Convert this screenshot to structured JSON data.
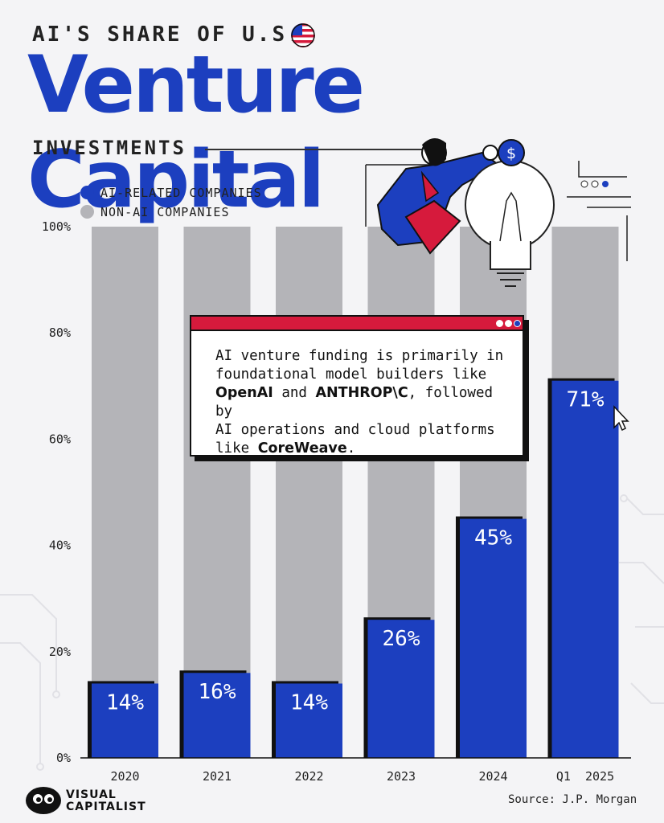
{
  "header": {
    "top_line": "AI'S SHARE OF U.S.",
    "main_title": "Venture Capital",
    "sub_line": "INVESTMENTS"
  },
  "legend": [
    {
      "label": "AI-RELATED COMPANIES",
      "color": "#1c3fbf"
    },
    {
      "label": "NON-AI COMPANIES",
      "color": "#b4b4b8"
    }
  ],
  "callout": {
    "line1": "AI venture funding is primarily in",
    "line2": "foundational model builders like",
    "brand1": "OpenAI",
    "and": " and ",
    "brand2": "ANTHROP\\C",
    "line3_rest": ", followed by",
    "line4": "AI operations and cloud platforms",
    "like": "like ",
    "brand3": "CoreWeave",
    "period": "."
  },
  "chart_data": {
    "type": "bar",
    "stacked": true,
    "categories": [
      "2020",
      "2021",
      "2022",
      "2023",
      "2024",
      "Q1  2025"
    ],
    "series": [
      {
        "name": "AI-RELATED COMPANIES",
        "values": [
          14,
          16,
          14,
          26,
          45,
          71
        ],
        "color": "#1c3fbf"
      },
      {
        "name": "NON-AI COMPANIES",
        "values": [
          86,
          84,
          86,
          74,
          55,
          29
        ],
        "color": "#b4b4b8"
      }
    ],
    "data_labels": [
      "14%",
      "16%",
      "14%",
      "26%",
      "45%",
      "71%"
    ],
    "yticks": [
      "0%",
      "20%",
      "40%",
      "60%",
      "80%",
      "100%"
    ],
    "ylim": [
      0,
      100
    ],
    "grid": false
  },
  "footer": {
    "logo_line1": "VISUAL",
    "logo_line2": "CAPITALIST",
    "source": "Source: J.P. Morgan"
  },
  "icons": [
    "us-flag-icon",
    "dollar-coin-icon",
    "lightbulb-icon",
    "cursor-icon",
    "visual-capitalist-logo-icon"
  ]
}
